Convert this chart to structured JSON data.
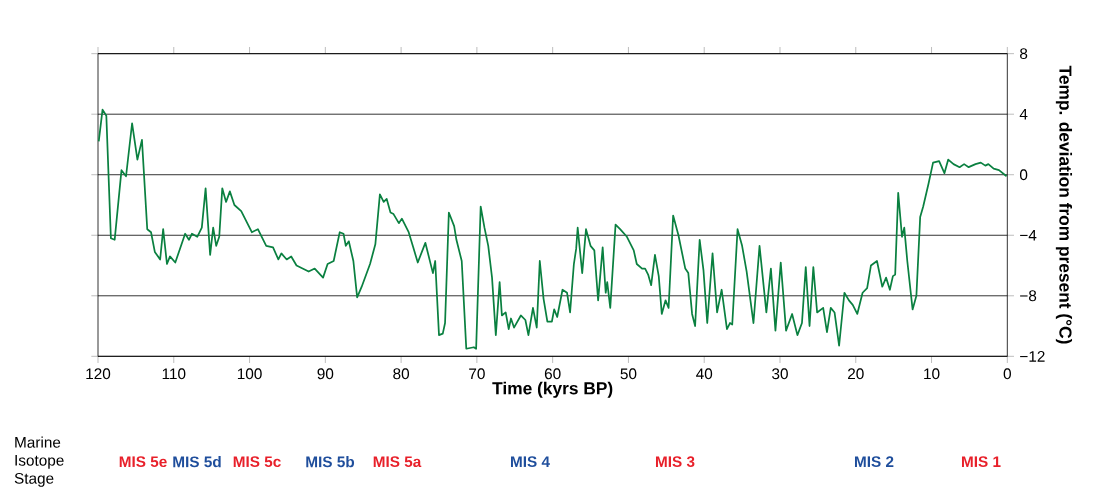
{
  "chart_data": {
    "type": "line",
    "xlabel": "Time (kyrs BP)",
    "ylabel": "Temp. deviation from present (°C)",
    "xlim": [
      120,
      0
    ],
    "xticks": [
      120,
      110,
      100,
      90,
      80,
      70,
      60,
      50,
      40,
      30,
      20,
      10,
      0
    ],
    "ylim": [
      -12,
      8
    ],
    "yticks": [
      {
        "value": -12,
        "label": "−12"
      },
      {
        "value": -8,
        "label": "−8"
      },
      {
        "value": -4,
        "label": "−4"
      },
      0,
      4,
      8
    ],
    "grid": "y",
    "series": [
      {
        "color": "#0a8040",
        "x": [
          119.9,
          119.4,
          118.9,
          118.3,
          117.8,
          116.9,
          116.3,
          115.5,
          114.8,
          114.2,
          113.5,
          113.0,
          112.5,
          111.8,
          111.4,
          110.9,
          110.5,
          109.8,
          108.5,
          108.0,
          107.6,
          106.9,
          106.3,
          105.8,
          105.2,
          104.8,
          104.4,
          104.0,
          103.6,
          103.1,
          102.6,
          102.0,
          101.1,
          99.7,
          98.9,
          97.8,
          96.9,
          96.2,
          95.8,
          95.1,
          94.5,
          93.8,
          92.2,
          91.4,
          90.3,
          89.7,
          88.9,
          88.1,
          87.6,
          87.3,
          86.9,
          86.3,
          85.8,
          85.2,
          84.1,
          83.4,
          82.8,
          82.3,
          81.9,
          81.4,
          81.0,
          80.3,
          79.9,
          79.0,
          78.4,
          77.8,
          76.8,
          75.8,
          75.5,
          75.0,
          74.5,
          74.2,
          73.7,
          73.0,
          72.7,
          72.0,
          71.4,
          70.4,
          70.1,
          69.5,
          69.0,
          68.5,
          68.0,
          67.5,
          67.0,
          66.7,
          66.2,
          65.8,
          65.5,
          65.1,
          64.2,
          63.6,
          63.2,
          62.6,
          62.1,
          61.7,
          61.2,
          60.7,
          60.1,
          59.8,
          59.4,
          58.7,
          58.1,
          57.7,
          57.2,
          56.9,
          56.7,
          56.1,
          55.6,
          55.0,
          54.5,
          54.0,
          53.4,
          53.0,
          52.8,
          52.4,
          51.7,
          51.1,
          50.2,
          49.3,
          48.9,
          48.2,
          47.8,
          47.4,
          47.0,
          46.5,
          46.0,
          45.6,
          45.1,
          44.7,
          44.1,
          43.4,
          42.5,
          42.1,
          41.6,
          41.2,
          40.6,
          40.1,
          39.6,
          38.9,
          38.3,
          37.7,
          37.0,
          36.6,
          36.3,
          35.6,
          35.0,
          34.4,
          33.5,
          32.7,
          31.8,
          31.2,
          30.6,
          29.9,
          29.2,
          28.4,
          27.7,
          27.1,
          26.6,
          26.1,
          25.6,
          25.1,
          24.3,
          23.8,
          23.3,
          22.8,
          22.2,
          21.5,
          20.9,
          20.4,
          19.8,
          19.1,
          18.5,
          18.0,
          17.2,
          16.5,
          16.0,
          15.5,
          15.1,
          14.8,
          14.4,
          13.9,
          13.6,
          13.2,
          12.5,
          12.0,
          11.5,
          11.1,
          10.4,
          9.8,
          9.0,
          8.3,
          7.8,
          7.1,
          6.3,
          5.7,
          5.1,
          4.2,
          3.5,
          2.9,
          2.5,
          1.8,
          1.1,
          0.1
        ],
        "values": [
          2.2,
          4.3,
          3.9,
          -4.2,
          -4.3,
          0.3,
          -0.1,
          3.4,
          1.0,
          2.3,
          -3.6,
          -3.8,
          -5.1,
          -5.6,
          -3.6,
          -5.9,
          -5.4,
          -5.8,
          -3.9,
          -4.3,
          -3.9,
          -4.1,
          -3.5,
          -0.9,
          -5.3,
          -3.5,
          -4.7,
          -4.1,
          -0.9,
          -1.8,
          -1.1,
          -2.0,
          -2.4,
          -3.8,
          -3.6,
          -4.7,
          -4.8,
          -5.6,
          -5.2,
          -5.6,
          -5.4,
          -6.0,
          -6.4,
          -6.2,
          -6.8,
          -5.9,
          -5.7,
          -3.8,
          -3.9,
          -4.7,
          -4.4,
          -5.7,
          -8.1,
          -7.4,
          -5.9,
          -4.6,
          -1.3,
          -1.8,
          -1.6,
          -2.5,
          -2.6,
          -3.2,
          -2.9,
          -3.8,
          -4.8,
          -5.8,
          -4.5,
          -6.5,
          -5.7,
          -10.6,
          -10.5,
          -9.8,
          -2.5,
          -3.4,
          -4.3,
          -5.7,
          -11.5,
          -11.4,
          -11.5,
          -2.1,
          -3.5,
          -4.7,
          -6.8,
          -10.6,
          -7.1,
          -9.3,
          -9.1,
          -10.2,
          -9.5,
          -10.1,
          -9.3,
          -9.6,
          -10.6,
          -8.8,
          -10.1,
          -5.7,
          -8.2,
          -9.7,
          -9.7,
          -8.9,
          -9.4,
          -7.6,
          -7.8,
          -9.1,
          -5.9,
          -4.9,
          -3.5,
          -6.5,
          -3.6,
          -4.7,
          -5.0,
          -8.3,
          -4.8,
          -7.8,
          -7.1,
          -8.8,
          -3.3,
          -3.6,
          -4.1,
          -5.0,
          -5.9,
          -6.2,
          -6.2,
          -6.6,
          -7.3,
          -5.3,
          -6.7,
          -9.2,
          -8.3,
          -8.8,
          -2.7,
          -4.0,
          -6.2,
          -6.5,
          -9.2,
          -10.0,
          -4.3,
          -6.3,
          -9.8,
          -5.2,
          -9.1,
          -7.6,
          -10.2,
          -9.8,
          -9.9,
          -3.6,
          -4.7,
          -6.4,
          -9.8,
          -4.7,
          -9.1,
          -6.2,
          -10.3,
          -5.8,
          -10.3,
          -9.2,
          -10.6,
          -9.8,
          -6.1,
          -10.0,
          -6.1,
          -9.1,
          -8.8,
          -10.4,
          -8.8,
          -9.1,
          -11.3,
          -7.8,
          -8.3,
          -8.6,
          -9.2,
          -7.8,
          -7.5,
          -6.0,
          -5.7,
          -7.4,
          -6.8,
          -7.6,
          -6.7,
          -6.6,
          -1.2,
          -4.1,
          -3.5,
          -5.7,
          -8.9,
          -8.0,
          -2.8,
          -2.1,
          -0.6,
          0.8,
          0.9,
          0.1,
          1.0,
          0.7,
          0.5,
          0.7,
          0.5,
          0.7,
          0.8,
          0.6,
          0.7,
          0.4,
          0.3,
          -0.1
        ]
      }
    ],
    "annotations": [
      "Marine Isotope Stage",
      "MIS 5e",
      "MIS 5d",
      "MIS 5c",
      "MIS 5b",
      "MIS 5a",
      "MIS 4",
      "MIS 3",
      "MIS 2",
      "MIS 1"
    ]
  }
}
